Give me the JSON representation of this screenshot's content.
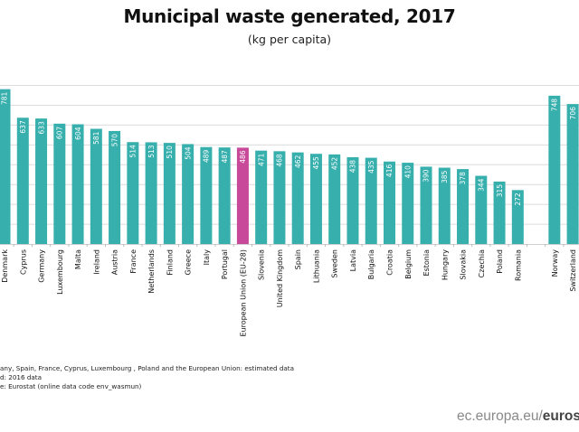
{
  "chart_data": {
    "type": "bar",
    "title": "Municipal waste generated, 2017",
    "subtitle": "(kg per capita)",
    "xlabel": "",
    "ylabel": "",
    "ylim": [
      0,
      800
    ],
    "grid": true,
    "gridline_step": 100,
    "categories": [
      "Denmark",
      "Cyprus",
      "Germany",
      "Luxembourg",
      "Malta",
      "Ireland",
      "Austria",
      "France",
      "Netherlands",
      "Finland",
      "Greece",
      "Italy",
      "Portugal",
      "European Union (EU-28)",
      "Slovenia",
      "United Kingdom",
      "Spain",
      "Lithuania",
      "Sweden",
      "Latvia",
      "Bulgaria",
      "Croatia",
      "Belgium",
      "Estonia",
      "Hungary",
      "Slovakia",
      "Czechia",
      "Poland",
      "Romania",
      "",
      "Norway",
      "Switzerland"
    ],
    "values": [
      781,
      637,
      633,
      607,
      604,
      581,
      570,
      514,
      513,
      510,
      504,
      489,
      487,
      486,
      471,
      468,
      462,
      455,
      452,
      438,
      435,
      416,
      410,
      390,
      385,
      378,
      344,
      315,
      272,
      null,
      748,
      706
    ],
    "highlight": "European Union (EU-28)",
    "colors": {
      "default": "#36afad",
      "highlight": "#c8489a"
    }
  },
  "notes": [
    "any, Spain,  France, Cyprus, Luxembourg , Poland and the European Union: estimated data",
    "d: 2016 data",
    "e:  Eurostat (online data code env_wasmun)"
  ],
  "brand": {
    "prefix": "ec.europa.eu/",
    "bold": "eurostat"
  }
}
